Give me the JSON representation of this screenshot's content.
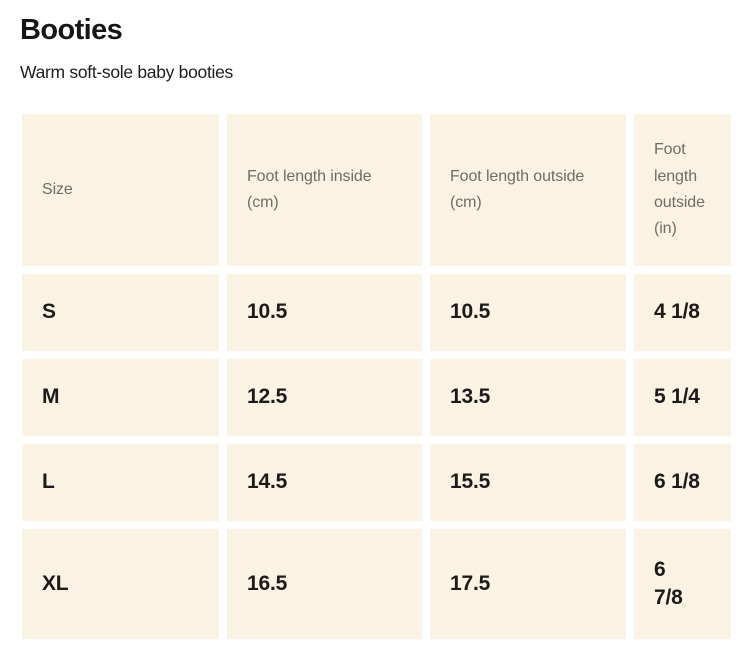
{
  "page": {
    "title": "Booties",
    "subtitle": "Warm soft-sole baby booties"
  },
  "size_table": {
    "columns": [
      "Size",
      "Foot length inside (cm)",
      "Foot length outside (cm)",
      "Foot length outside (in)"
    ],
    "rows": [
      {
        "size": "S",
        "inside_cm": "10.5",
        "outside_cm": "10.5",
        "outside_in": "4 1/8"
      },
      {
        "size": "M",
        "inside_cm": "12.5",
        "outside_cm": "13.5",
        "outside_in": "5 1/4"
      },
      {
        "size": "L",
        "inside_cm": "14.5",
        "outside_cm": "15.5",
        "outside_in": "6 1/8"
      },
      {
        "size": "XL",
        "inside_cm": "16.5",
        "outside_cm": "17.5",
        "outside_in": "6\n7/8"
      }
    ],
    "colors": {
      "cell_background": "#faf3e4",
      "header_text": "#6f6d65",
      "body_text": "#1c1b19",
      "page_background": "#ffffff"
    }
  }
}
